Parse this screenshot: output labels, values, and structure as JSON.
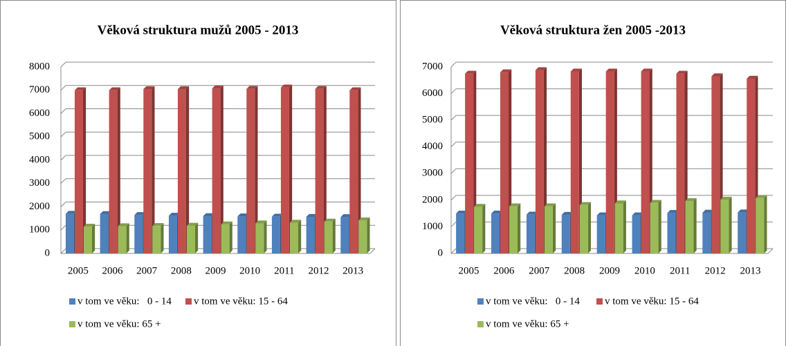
{
  "chart_data": [
    {
      "type": "bar",
      "title": "Věková struktura mužů 2005 - 2013",
      "categories": [
        "2005",
        "2006",
        "2007",
        "2008",
        "2009",
        "2010",
        "2011",
        "2012",
        "2013"
      ],
      "series": [
        {
          "name": "v tom ve věku:   0 - 14",
          "color": "#4f81bd",
          "values": [
            1700,
            1690,
            1650,
            1620,
            1600,
            1590,
            1580,
            1570,
            1560
          ]
        },
        {
          "name": "v tom ve věku: 15 - 64",
          "color": "#c0504d",
          "values": [
            7000,
            7000,
            7050,
            7050,
            7080,
            7060,
            7120,
            7060,
            7000
          ]
        },
        {
          "name": "v tom ve věku: 65 +",
          "color": "#9bbb59",
          "values": [
            1150,
            1170,
            1180,
            1190,
            1250,
            1290,
            1320,
            1370,
            1420
          ]
        }
      ],
      "ylim": [
        0,
        8000
      ],
      "yticks": [
        0,
        1000,
        2000,
        3000,
        4000,
        5000,
        6000,
        7000,
        8000
      ],
      "grid": true
    },
    {
      "type": "bar",
      "title": "Věková struktura žen 2005 -2013",
      "categories": [
        "2005",
        "2006",
        "2007",
        "2008",
        "2009",
        "2010",
        "2011",
        "2012",
        "2013"
      ],
      "series": [
        {
          "name": "v tom ve věku:   0 - 14",
          "color": "#4f81bd",
          "values": [
            1500,
            1500,
            1460,
            1450,
            1430,
            1430,
            1520,
            1530,
            1540
          ]
        },
        {
          "name": "v tom ve věku: 15 - 64",
          "color": "#c0504d",
          "values": [
            6750,
            6800,
            6880,
            6830,
            6830,
            6830,
            6750,
            6650,
            6560
          ]
        },
        {
          "name": "v tom ve věku: 65 +",
          "color": "#9bbb59",
          "values": [
            1750,
            1770,
            1770,
            1820,
            1880,
            1900,
            1970,
            2020,
            2080
          ]
        }
      ],
      "ylim": [
        0,
        7000
      ],
      "yticks": [
        0,
        1000,
        2000,
        3000,
        4000,
        5000,
        6000,
        7000
      ],
      "grid": true
    }
  ]
}
